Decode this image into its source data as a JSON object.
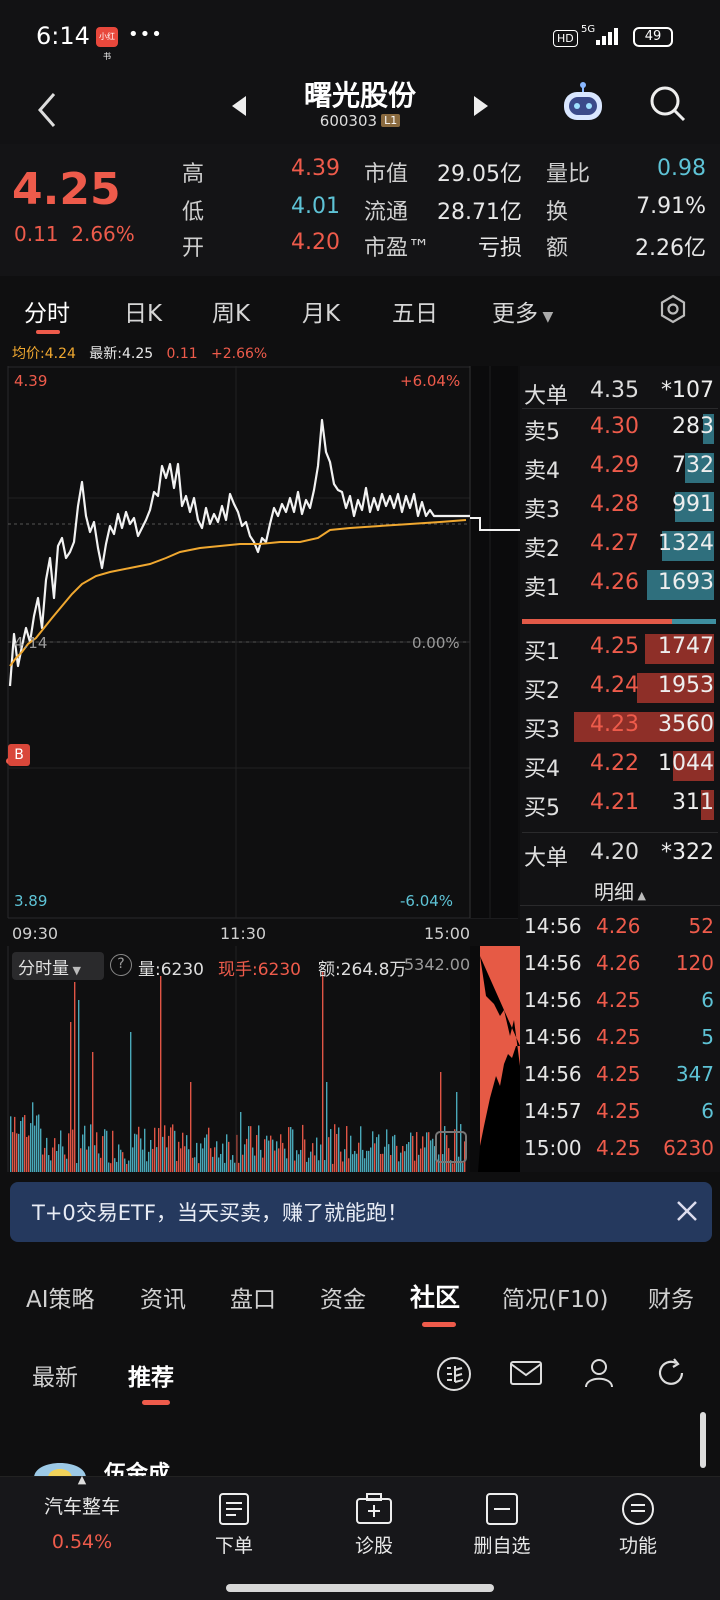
{
  "status": {
    "time": "6:14",
    "app_badge": "小红书",
    "dots": "•••",
    "hd": "HD",
    "net": "5G",
    "battery": "49"
  },
  "header": {
    "stock_name": "曙光股份",
    "stock_code": "600303",
    "level": "L1"
  },
  "quote": {
    "price": "4.25",
    "change": "0.11",
    "change_pct": "2.66%",
    "rows": [
      {
        "l1": "高",
        "v1": "4.39",
        "l2": "市值",
        "v2": "29.05亿",
        "l3": "量比",
        "v3": "0.98"
      },
      {
        "l1": "低",
        "v1": "4.01",
        "l2": "流通",
        "v2": "28.71亿",
        "l3": "换",
        "v3": "7.91%"
      },
      {
        "l1": "开",
        "v1": "4.20",
        "l2": "市盈™",
        "v2": "亏损",
        "l3": "额",
        "v3": "2.26亿"
      }
    ]
  },
  "chart_tabs": [
    "分时",
    "日K",
    "周K",
    "月K",
    "五日",
    "更多"
  ],
  "info_line": {
    "avg_label": "均价:4.24",
    "latest_label": "最新:4.25",
    "chg": "0.11",
    "chg_pct": "+2.66%"
  },
  "chart_labels": {
    "top_price": "4.39",
    "top_pct": "+6.04%",
    "mid_price": "4.14",
    "mid_pct": "0.00%",
    "bot_price": "3.89",
    "bot_pct": "-6.04%",
    "b_marker": "B",
    "t_start": "09:30",
    "t_mid": "11:30",
    "t_end": "15:00"
  },
  "volume_header": {
    "selector": "分时量",
    "help": "?",
    "vol": "量:6230",
    "now": "现手:6230",
    "amount": "额:264.8万",
    "max": "5342.00"
  },
  "orderbook": {
    "big_top": {
      "label": "大单",
      "price": "4.35",
      "vol": "*107"
    },
    "asks": [
      {
        "label": "卖5",
        "price": "4.30",
        "vol": "283",
        "fill": 0.08
      },
      {
        "label": "卖4",
        "price": "4.29",
        "vol": "732",
        "fill": 0.21
      },
      {
        "label": "卖3",
        "price": "4.28",
        "vol": "991",
        "fill": 0.28
      },
      {
        "label": "卖2",
        "price": "4.27",
        "vol": "1324",
        "fill": 0.37
      },
      {
        "label": "卖1",
        "price": "4.26",
        "vol": "1693",
        "fill": 0.48
      }
    ],
    "bids": [
      {
        "label": "买1",
        "price": "4.25",
        "vol": "1747",
        "fill": 0.49
      },
      {
        "label": "买2",
        "price": "4.24",
        "vol": "1953",
        "fill": 0.55
      },
      {
        "label": "买3",
        "price": "4.23",
        "vol": "3560",
        "fill": 1.0
      },
      {
        "label": "买4",
        "price": "4.22",
        "vol": "1044",
        "fill": 0.29
      },
      {
        "label": "买5",
        "price": "4.21",
        "vol": "311",
        "fill": 0.09
      }
    ],
    "big_bottom": {
      "label": "大单",
      "price": "4.20",
      "vol": "*322"
    }
  },
  "detail": {
    "title": "明细",
    "rows": [
      {
        "time": "14:56",
        "price": "4.26",
        "vol": "52",
        "side": "buy"
      },
      {
        "time": "14:56",
        "price": "4.26",
        "vol": "120",
        "side": "buy"
      },
      {
        "time": "14:56",
        "price": "4.25",
        "vol": "6",
        "side": "sell"
      },
      {
        "time": "14:56",
        "price": "4.25",
        "vol": "5",
        "side": "sell"
      },
      {
        "time": "14:56",
        "price": "4.25",
        "vol": "347",
        "side": "sell"
      },
      {
        "time": "14:57",
        "price": "4.25",
        "vol": "6",
        "side": "sell"
      },
      {
        "time": "15:00",
        "price": "4.25",
        "vol": "6230",
        "side": "buy"
      }
    ]
  },
  "banner": {
    "text": "T+0交易ETF，当天买卖，赚了就能跑！"
  },
  "bottom_tabs": [
    "AI策略",
    "资讯",
    "盘口",
    "资金",
    "社区",
    "简况(F10)",
    "财务"
  ],
  "sub_tabs": [
    "最新",
    "推荐"
  ],
  "post": {
    "author": "伍金成"
  },
  "bottom_nav": {
    "sector": "汽车整车",
    "sector_pct": "0.54%",
    "order": "下单",
    "diagnose": "诊股",
    "remove": "删自选",
    "functions": "功能"
  },
  "colors": {
    "up": "#ee5b4b",
    "down": "#5ec3d6",
    "avg_line": "#f0a830",
    "bg": "#0f0f10"
  }
}
